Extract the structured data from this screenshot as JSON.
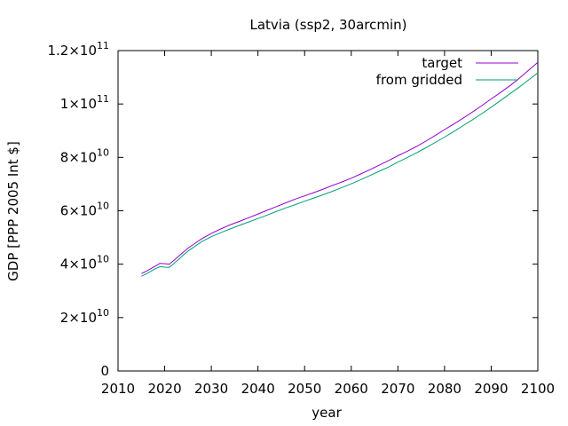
{
  "chart_data": {
    "type": "line",
    "title": "Latvia (ssp2, 30arcmin)",
    "xlabel": "year",
    "ylabel": "GDP [PPP 2005 Int $]",
    "xlim": [
      2010,
      2100
    ],
    "ylim": [
      0,
      120000000000
    ],
    "x_ticks": [
      2010,
      2020,
      2030,
      2040,
      2050,
      2060,
      2070,
      2080,
      2090,
      2100
    ],
    "x_tick_labels": [
      "2010",
      "2020",
      "2030",
      "2040",
      "2050",
      "2060",
      "2070",
      "2080",
      "2090",
      "2100"
    ],
    "y_ticks": [
      {
        "value": 0,
        "label": "0",
        "exp": ""
      },
      {
        "value": 20000000000,
        "label": "2×10",
        "exp": "10"
      },
      {
        "value": 40000000000,
        "label": "4×10",
        "exp": "10"
      },
      {
        "value": 60000000000,
        "label": "6×10",
        "exp": "10"
      },
      {
        "value": 80000000000,
        "label": "8×10",
        "exp": "10"
      },
      {
        "value": 100000000000,
        "label": "1×10",
        "exp": "11"
      },
      {
        "value": 120000000000,
        "label": "1.2×10",
        "exp": "11"
      }
    ],
    "grid": false,
    "legend_position": "top-right",
    "series": [
      {
        "name": "target",
        "color": "#9400d3",
        "x": [
          2015,
          2016,
          2017,
          2018,
          2019,
          2020,
          2021,
          2022,
          2023,
          2024,
          2025,
          2026,
          2027,
          2028,
          2030,
          2032,
          2034,
          2036,
          2038,
          2040,
          2042,
          2044,
          2046,
          2048,
          2050,
          2052,
          2054,
          2056,
          2058,
          2060,
          2062,
          2064,
          2066,
          2068,
          2070,
          2072,
          2074,
          2076,
          2078,
          2080,
          2082,
          2084,
          2086,
          2088,
          2090,
          2092,
          2094,
          2096,
          2098,
          2100
        ],
        "values": [
          36500000000,
          37300000000,
          38300000000,
          39300000000,
          40300000000,
          40200000000,
          40000000000,
          41500000000,
          43000000000,
          44500000000,
          46000000000,
          47200000000,
          48400000000,
          49600000000,
          51500000000,
          53200000000,
          54700000000,
          56000000000,
          57400000000,
          58800000000,
          60200000000,
          61600000000,
          63000000000,
          64400000000,
          65600000000,
          66800000000,
          68100000000,
          69500000000,
          70800000000,
          72200000000,
          73800000000,
          75400000000,
          77100000000,
          78800000000,
          80600000000,
          82300000000,
          84100000000,
          86100000000,
          88200000000,
          90400000000,
          92500000000,
          94700000000,
          97000000000,
          99400000000,
          101900000000,
          104300000000,
          106800000000,
          109600000000,
          112600000000,
          115600000000
        ]
      },
      {
        "name": "from gridded",
        "color": "#009e73",
        "x": [
          2015,
          2016,
          2017,
          2018,
          2019,
          2020,
          2021,
          2022,
          2023,
          2024,
          2025,
          2026,
          2027,
          2028,
          2030,
          2032,
          2034,
          2036,
          2038,
          2040,
          2042,
          2044,
          2046,
          2048,
          2050,
          2052,
          2054,
          2056,
          2058,
          2060,
          2062,
          2064,
          2066,
          2068,
          2070,
          2072,
          2074,
          2076,
          2078,
          2080,
          2082,
          2084,
          2086,
          2088,
          2090,
          2092,
          2094,
          2096,
          2098,
          2100
        ],
        "values": [
          35500000000,
          36300000000,
          37300000000,
          38300000000,
          39100000000,
          38900000000,
          38800000000,
          40300000000,
          41800000000,
          43400000000,
          44900000000,
          46100000000,
          47300000000,
          48500000000,
          50300000000,
          51800000000,
          53200000000,
          54500000000,
          55800000000,
          57100000000,
          58400000000,
          59800000000,
          61100000000,
          62300000000,
          63600000000,
          64800000000,
          66000000000,
          67300000000,
          68700000000,
          70100000000,
          71600000000,
          73200000000,
          74800000000,
          76400000000,
          78200000000,
          79900000000,
          81700000000,
          83600000000,
          85600000000,
          87600000000,
          89700000000,
          91900000000,
          94100000000,
          96400000000,
          98800000000,
          101300000000,
          103800000000,
          106300000000,
          109000000000,
          111700000000
        ]
      }
    ]
  }
}
